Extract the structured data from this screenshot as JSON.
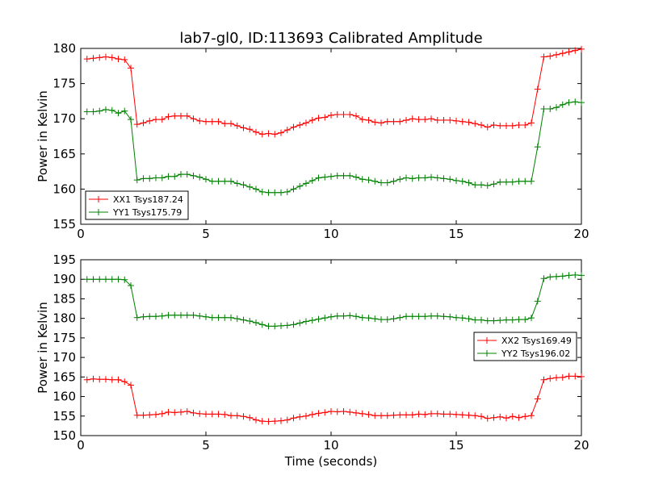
{
  "chart_data": [
    {
      "type": "line",
      "title": "lab7-gl0, ID:113693 Calibrated Amplitude",
      "xlabel": "",
      "ylabel": "Power in Kelvin",
      "xlim": [
        0,
        20
      ],
      "ylim": [
        155,
        180
      ],
      "xticks": [
        "0",
        "5",
        "10",
        "15",
        "20"
      ],
      "yticks": [
        "155",
        "160",
        "165",
        "170",
        "175",
        "180"
      ],
      "grid": false,
      "legend_position": "lower-left",
      "x": [
        0.25,
        0.5,
        0.75,
        1.0,
        1.25,
        1.5,
        1.75,
        2.0,
        2.25,
        2.5,
        2.75,
        3.0,
        3.25,
        3.5,
        3.75,
        4.0,
        4.25,
        4.5,
        4.75,
        5.0,
        5.25,
        5.5,
        5.75,
        6.0,
        6.25,
        6.5,
        6.75,
        7.0,
        7.25,
        7.5,
        7.75,
        8.0,
        8.25,
        8.5,
        8.75,
        9.0,
        9.25,
        9.5,
        9.75,
        10.0,
        10.25,
        10.5,
        10.75,
        11.0,
        11.25,
        11.5,
        11.75,
        12.0,
        12.25,
        12.5,
        12.75,
        13.0,
        13.25,
        13.5,
        13.75,
        14.0,
        14.25,
        14.5,
        14.75,
        15.0,
        15.25,
        15.5,
        15.75,
        16.0,
        16.25,
        16.5,
        16.75,
        17.0,
        17.25,
        17.5,
        17.75,
        18.0,
        18.25,
        18.5,
        18.75,
        19.0,
        19.25,
        19.5,
        19.75,
        20.0
      ],
      "series": [
        {
          "name": "XX1 Tsys187.24",
          "color": "#ff0000",
          "values": [
            178.5,
            178.6,
            178.7,
            178.8,
            178.7,
            178.5,
            178.4,
            177.2,
            169.2,
            169.4,
            169.7,
            169.9,
            169.9,
            170.3,
            170.4,
            170.4,
            170.4,
            170.0,
            169.7,
            169.6,
            169.6,
            169.6,
            169.3,
            169.3,
            169.0,
            168.7,
            168.5,
            168.1,
            167.8,
            167.9,
            167.8,
            168.0,
            168.4,
            168.8,
            169.1,
            169.4,
            169.8,
            170.1,
            170.2,
            170.5,
            170.6,
            170.6,
            170.6,
            170.4,
            169.9,
            169.8,
            169.5,
            169.4,
            169.6,
            169.6,
            169.6,
            169.8,
            170.0,
            169.9,
            169.9,
            170.0,
            169.8,
            169.8,
            169.8,
            169.7,
            169.6,
            169.5,
            169.3,
            169.1,
            168.8,
            169.1,
            169.0,
            169.0,
            169.0,
            169.1,
            169.1,
            169.4,
            174.2,
            178.8,
            178.9,
            179.1,
            179.3,
            179.5,
            179.7,
            179.9
          ]
        },
        {
          "name": "YY1 Tsys175.79",
          "color": "#008000",
          "values": [
            171.0,
            171.0,
            171.1,
            171.3,
            171.2,
            170.8,
            171.1,
            169.9,
            161.3,
            161.5,
            161.5,
            161.6,
            161.6,
            161.8,
            161.8,
            162.1,
            162.1,
            161.9,
            161.7,
            161.4,
            161.1,
            161.1,
            161.1,
            161.1,
            160.8,
            160.6,
            160.3,
            160.0,
            159.6,
            159.5,
            159.5,
            159.5,
            159.6,
            160.0,
            160.4,
            160.8,
            161.2,
            161.6,
            161.7,
            161.8,
            161.9,
            161.9,
            161.9,
            161.7,
            161.4,
            161.3,
            161.1,
            160.9,
            160.9,
            161.1,
            161.4,
            161.6,
            161.5,
            161.6,
            161.6,
            161.7,
            161.6,
            161.5,
            161.4,
            161.2,
            161.1,
            160.9,
            160.6,
            160.6,
            160.5,
            160.7,
            161.0,
            161.0,
            161.0,
            161.1,
            161.1,
            161.1,
            166.0,
            171.4,
            171.4,
            171.6,
            172.0,
            172.3,
            172.4,
            172.3
          ]
        }
      ]
    },
    {
      "type": "line",
      "title": "",
      "xlabel": "Time (seconds)",
      "ylabel": "Power in Kelvin",
      "xlim": [
        0,
        20
      ],
      "ylim": [
        150,
        195
      ],
      "xticks": [
        "0",
        "5",
        "10",
        "15",
        "20"
      ],
      "yticks": [
        "150",
        "155",
        "160",
        "165",
        "170",
        "175",
        "180",
        "185",
        "190",
        "195"
      ],
      "grid": false,
      "legend_position": "center-right",
      "x": [
        0.25,
        0.5,
        0.75,
        1.0,
        1.25,
        1.5,
        1.75,
        2.0,
        2.25,
        2.5,
        2.75,
        3.0,
        3.25,
        3.5,
        3.75,
        4.0,
        4.25,
        4.5,
        4.75,
        5.0,
        5.25,
        5.5,
        5.75,
        6.0,
        6.25,
        6.5,
        6.75,
        7.0,
        7.25,
        7.5,
        7.75,
        8.0,
        8.25,
        8.5,
        8.75,
        9.0,
        9.25,
        9.5,
        9.75,
        10.0,
        10.25,
        10.5,
        10.75,
        11.0,
        11.25,
        11.5,
        11.75,
        12.0,
        12.25,
        12.5,
        12.75,
        13.0,
        13.25,
        13.5,
        13.75,
        14.0,
        14.25,
        14.5,
        14.75,
        15.0,
        15.25,
        15.5,
        15.75,
        16.0,
        16.25,
        16.5,
        16.75,
        17.0,
        17.25,
        17.5,
        17.75,
        18.0,
        18.25,
        18.5,
        18.75,
        19.0,
        19.25,
        19.5,
        19.75,
        20.0
      ],
      "series": [
        {
          "name": "XX2 Tsys169.49",
          "color": "#ff0000",
          "values": [
            164.3,
            164.5,
            164.4,
            164.4,
            164.3,
            164.3,
            163.8,
            162.9,
            155.2,
            155.2,
            155.3,
            155.4,
            155.6,
            156.0,
            155.9,
            156.0,
            156.2,
            155.8,
            155.6,
            155.5,
            155.5,
            155.5,
            155.4,
            155.1,
            155.1,
            154.9,
            154.6,
            154.0,
            153.7,
            153.6,
            153.7,
            153.8,
            154.0,
            154.5,
            154.8,
            155.0,
            155.4,
            155.7,
            155.9,
            156.2,
            156.1,
            156.2,
            156.0,
            155.8,
            155.6,
            155.4,
            155.1,
            155.1,
            155.1,
            155.2,
            155.3,
            155.3,
            155.3,
            155.5,
            155.4,
            155.6,
            155.6,
            155.5,
            155.5,
            155.4,
            155.3,
            155.2,
            155.1,
            154.9,
            154.4,
            154.6,
            154.8,
            154.5,
            154.9,
            154.6,
            154.9,
            155.1,
            159.4,
            164.3,
            164.6,
            164.8,
            164.9,
            165.2,
            165.2,
            165.1
          ]
        },
        {
          "name": "YY2 Tsys196.02",
          "color": "#008000",
          "values": [
            190.0,
            190.0,
            190.0,
            190.0,
            190.0,
            190.0,
            189.9,
            188.4,
            180.2,
            180.4,
            180.5,
            180.5,
            180.6,
            180.8,
            180.8,
            180.8,
            180.8,
            180.8,
            180.6,
            180.4,
            180.2,
            180.2,
            180.2,
            180.2,
            179.9,
            179.6,
            179.3,
            178.9,
            178.4,
            178.0,
            178.0,
            178.1,
            178.2,
            178.4,
            178.8,
            179.2,
            179.5,
            179.8,
            180.1,
            180.4,
            180.6,
            180.6,
            180.7,
            180.5,
            180.2,
            180.1,
            179.9,
            179.7,
            179.7,
            179.9,
            180.2,
            180.5,
            180.5,
            180.5,
            180.5,
            180.6,
            180.6,
            180.5,
            180.4,
            180.2,
            180.1,
            179.9,
            179.6,
            179.6,
            179.4,
            179.4,
            179.5,
            179.6,
            179.6,
            179.7,
            179.7,
            180.1,
            184.4,
            190.2,
            190.6,
            190.7,
            190.8,
            191.0,
            191.1,
            191.0
          ]
        }
      ]
    }
  ]
}
